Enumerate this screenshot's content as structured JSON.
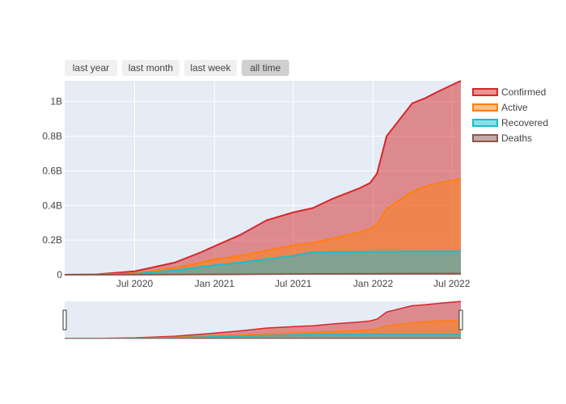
{
  "range_selector": {
    "buttons": [
      {
        "label": "last year",
        "active": false
      },
      {
        "label": "last month",
        "active": false
      },
      {
        "label": "last week",
        "active": false
      },
      {
        "label": "all time",
        "active": true
      }
    ]
  },
  "colors": {
    "confirmed": "#d62728",
    "active": "#ff7f0e",
    "recovered": "#17becf",
    "deaths": "#8c564b",
    "plot_bg": "#e5ecf6",
    "grid": "#ffffff",
    "button_bg": "#f0f0f0",
    "button_active_bg": "#d0d0d0"
  },
  "chart_data": {
    "type": "area",
    "title": "",
    "xlabel": "",
    "ylabel": "",
    "x_range": [
      "2020-01-22",
      "2022-07-22"
    ],
    "ylim": [
      0,
      1120000000
    ],
    "x_ticks": [
      {
        "date": "2020-07-01",
        "label": "Jul 2020"
      },
      {
        "date": "2021-01-01",
        "label": "Jan 2021"
      },
      {
        "date": "2021-07-01",
        "label": "Jul 2021"
      },
      {
        "date": "2022-01-01",
        "label": "Jan 2022"
      },
      {
        "date": "2022-07-01",
        "label": "Jul 2022"
      }
    ],
    "y_ticks": [
      {
        "value": 0,
        "label": "0"
      },
      {
        "value": 200000000,
        "label": "0.2B"
      },
      {
        "value": 400000000,
        "label": "0.4B"
      },
      {
        "value": 600000000,
        "label": "0.6B"
      },
      {
        "value": 800000000,
        "label": "0.8B"
      },
      {
        "value": 1000000000,
        "label": "1B"
      }
    ],
    "grid": true,
    "legend_position": "top-right",
    "rangeslider": true,
    "x": [
      "2020-01-22",
      "2020-04-01",
      "2020-07-01",
      "2020-10-01",
      "2020-12-01",
      "2021-01-01",
      "2021-03-01",
      "2021-05-01",
      "2021-07-01",
      "2021-08-15",
      "2021-10-01",
      "2021-12-01",
      "2021-12-25",
      "2022-01-10",
      "2022-02-01",
      "2022-04-01",
      "2022-05-01",
      "2022-06-01",
      "2022-07-22"
    ],
    "series": [
      {
        "name": "Confirmed",
        "color_key": "confirmed",
        "values": [
          0,
          2000000,
          20000000,
          70000000,
          130000000,
          165000000,
          230000000,
          315000000,
          360000000,
          385000000,
          440000000,
          500000000,
          530000000,
          585000000,
          800000000,
          990000000,
          1020000000,
          1060000000,
          1120000000
        ]
      },
      {
        "name": "Active",
        "color_key": "active",
        "values": [
          0,
          1000000,
          8000000,
          40000000,
          70000000,
          90000000,
          110000000,
          140000000,
          170000000,
          185000000,
          210000000,
          245000000,
          265000000,
          290000000,
          380000000,
          480000000,
          510000000,
          530000000,
          555000000
        ]
      },
      {
        "name": "Recovered",
        "color_key": "recovered",
        "values": [
          0,
          500000,
          5000000,
          25000000,
          45000000,
          55000000,
          70000000,
          90000000,
          110000000,
          130000000,
          132000000,
          132000000,
          133000000,
          133000000,
          133000000,
          134000000,
          134000000,
          134000000,
          135000000
        ]
      },
      {
        "name": "Deaths",
        "color_key": "deaths",
        "values": [
          0,
          100000,
          500000,
          1000000,
          1500000,
          1800000,
          2500000,
          3200000,
          4000000,
          4400000,
          4800000,
          5200000,
          5400000,
          5500000,
          5800000,
          6200000,
          6300000,
          6350000,
          6400000
        ]
      }
    ]
  }
}
